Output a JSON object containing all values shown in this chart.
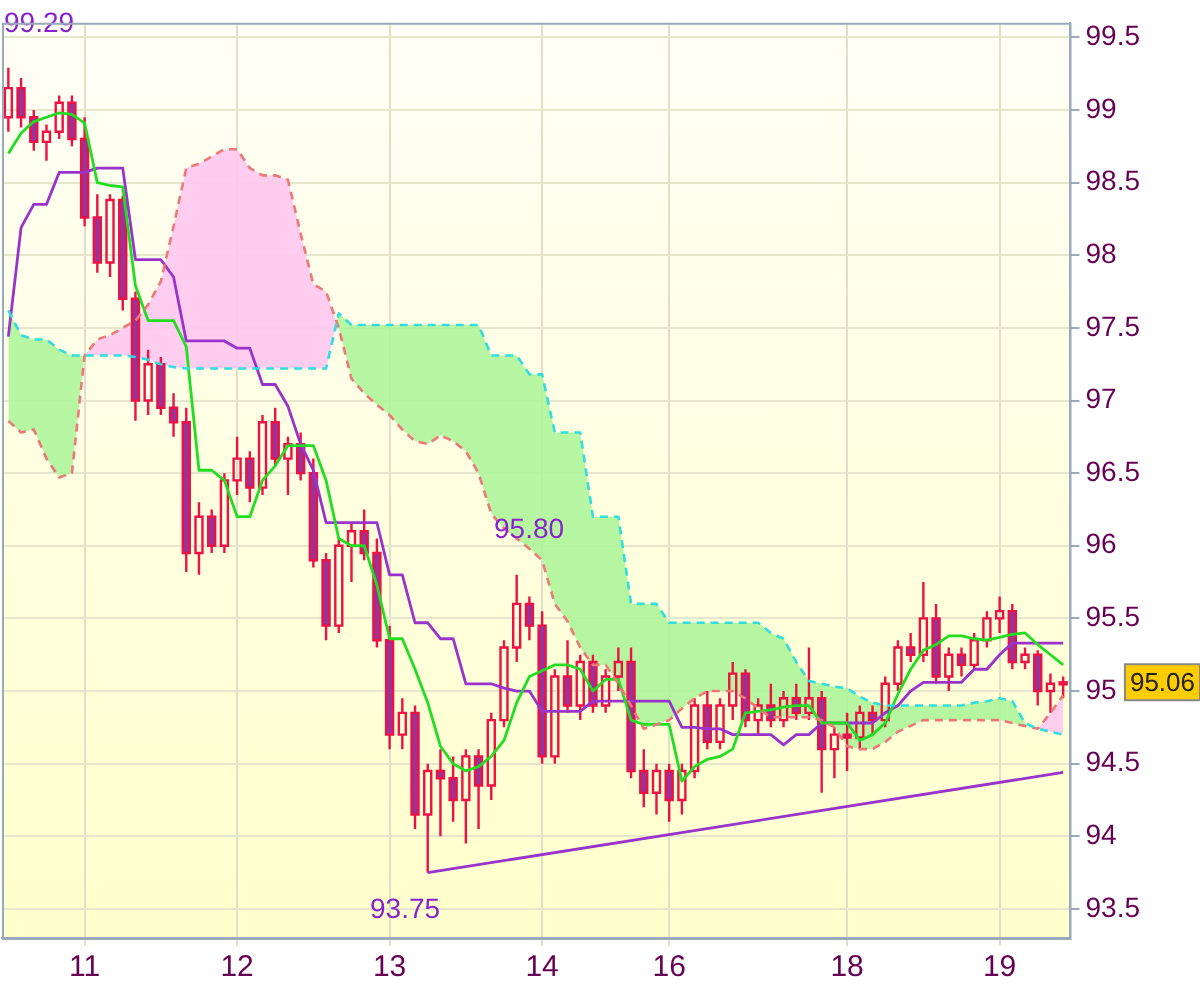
{
  "chart_data": {
    "type": "candlestick",
    "color": "#ee1144",
    "categories": [
      null,
      null,
      null,
      null,
      null,
      null,
      "11",
      null,
      null,
      null,
      null,
      null,
      null,
      null,
      null,
      null,
      null,
      null,
      "12",
      null,
      null,
      null,
      null,
      null,
      null,
      null,
      null,
      null,
      null,
      null,
      "13",
      null,
      null,
      null,
      null,
      null,
      null,
      null,
      null,
      null,
      null,
      null,
      "14",
      null,
      null,
      null,
      null,
      null,
      null,
      null,
      null,
      null,
      "16",
      null,
      null,
      null,
      null,
      null,
      null,
      null,
      null,
      null,
      null,
      null,
      null,
      null,
      "18",
      null,
      null,
      null,
      null,
      null,
      null,
      null,
      null,
      null,
      null,
      null,
      "19",
      null,
      null,
      null,
      null,
      null
    ],
    "ohlc": [
      [
        98.95,
        99.29,
        98.85,
        99.15
      ],
      [
        99.15,
        99.22,
        98.88,
        98.95
      ],
      [
        98.95,
        99.0,
        98.72,
        98.78
      ],
      [
        98.78,
        98.9,
        98.65,
        98.85
      ],
      [
        98.85,
        99.1,
        98.8,
        99.05
      ],
      [
        99.05,
        99.1,
        98.75,
        98.8
      ],
      [
        98.8,
        98.95,
        98.2,
        98.26
      ],
      [
        98.26,
        98.42,
        97.88,
        97.95
      ],
      [
        97.95,
        98.42,
        97.85,
        98.38
      ],
      [
        98.38,
        98.41,
        97.62,
        97.7
      ],
      [
        97.7,
        97.75,
        96.86,
        97.0
      ],
      [
        97.0,
        97.35,
        96.9,
        97.25
      ],
      [
        97.25,
        97.3,
        96.9,
        96.95
      ],
      [
        96.95,
        97.05,
        96.75,
        96.85
      ],
      [
        96.85,
        96.95,
        95.82,
        95.95
      ],
      [
        95.95,
        96.3,
        95.8,
        96.2
      ],
      [
        96.2,
        96.25,
        95.95,
        96.0
      ],
      [
        96.0,
        96.5,
        95.95,
        96.45
      ],
      [
        96.45,
        96.75,
        96.35,
        96.6
      ],
      [
        96.6,
        96.65,
        96.3,
        96.4
      ],
      [
        96.4,
        96.9,
        96.35,
        96.85
      ],
      [
        96.85,
        96.95,
        96.55,
        96.6
      ],
      [
        96.6,
        96.75,
        96.35,
        96.7
      ],
      [
        96.7,
        96.78,
        96.45,
        96.5
      ],
      [
        96.5,
        96.6,
        95.85,
        95.9
      ],
      [
        95.9,
        95.95,
        95.35,
        95.45
      ],
      [
        95.45,
        96.05,
        95.4,
        96.0
      ],
      [
        96.0,
        96.15,
        95.75,
        96.1
      ],
      [
        96.1,
        96.25,
        95.9,
        95.95
      ],
      [
        95.95,
        96.05,
        95.3,
        95.35
      ],
      [
        95.35,
        95.45,
        94.6,
        94.7
      ],
      [
        94.7,
        94.95,
        94.6,
        94.85
      ],
      [
        94.85,
        94.9,
        94.05,
        94.15
      ],
      [
        94.15,
        94.5,
        93.75,
        94.45
      ],
      [
        94.45,
        94.6,
        94.0,
        94.4
      ],
      [
        94.4,
        94.55,
        94.1,
        94.25
      ],
      [
        94.25,
        94.6,
        93.95,
        94.55
      ],
      [
        94.55,
        94.6,
        94.05,
        94.35
      ],
      [
        94.35,
        94.85,
        94.25,
        94.8
      ],
      [
        94.8,
        95.35,
        94.75,
        95.3
      ],
      [
        95.3,
        95.8,
        95.2,
        95.6
      ],
      [
        95.6,
        95.65,
        95.35,
        95.45
      ],
      [
        95.45,
        95.55,
        94.5,
        94.55
      ],
      [
        94.55,
        95.15,
        94.5,
        95.1
      ],
      [
        95.1,
        95.35,
        94.85,
        94.9
      ],
      [
        94.9,
        95.25,
        94.8,
        95.2
      ],
      [
        95.2,
        95.25,
        94.85,
        94.9
      ],
      [
        94.9,
        95.15,
        94.85,
        95.1
      ],
      [
        95.1,
        95.3,
        95.0,
        95.2
      ],
      [
        95.2,
        95.3,
        94.4,
        94.45
      ],
      [
        94.45,
        94.6,
        94.2,
        94.3
      ],
      [
        94.3,
        94.5,
        94.15,
        94.45
      ],
      [
        94.45,
        94.5,
        94.1,
        94.25
      ],
      [
        94.25,
        94.5,
        94.15,
        94.45
      ],
      [
        94.45,
        94.95,
        94.4,
        94.9
      ],
      [
        94.9,
        95.0,
        94.6,
        94.65
      ],
      [
        94.65,
        94.95,
        94.6,
        94.9
      ],
      [
        94.9,
        95.2,
        94.8,
        95.12
      ],
      [
        95.12,
        95.15,
        94.75,
        94.8
      ],
      [
        94.8,
        94.95,
        94.7,
        94.9
      ],
      [
        94.9,
        95.05,
        94.75,
        94.8
      ],
      [
        94.8,
        95.0,
        94.75,
        94.95
      ],
      [
        94.95,
        95.05,
        94.8,
        94.85
      ],
      [
        94.85,
        95.3,
        94.8,
        94.95
      ],
      [
        94.95,
        95.0,
        94.3,
        94.6
      ],
      [
        94.6,
        94.75,
        94.4,
        94.7
      ],
      [
        94.7,
        94.85,
        94.45,
        94.68
      ],
      [
        94.68,
        94.9,
        94.6,
        94.85
      ],
      [
        94.85,
        94.9,
        94.7,
        94.8
      ],
      [
        94.8,
        95.1,
        94.75,
        95.05
      ],
      [
        95.05,
        95.35,
        95.0,
        95.3
      ],
      [
        95.3,
        95.4,
        95.2,
        95.25
      ],
      [
        95.25,
        95.75,
        95.2,
        95.5
      ],
      [
        95.5,
        95.6,
        95.05,
        95.1
      ],
      [
        95.1,
        95.3,
        95.0,
        95.25
      ],
      [
        95.25,
        95.3,
        95.1,
        95.18
      ],
      [
        95.18,
        95.4,
        95.15,
        95.35
      ],
      [
        95.35,
        95.55,
        95.3,
        95.5
      ],
      [
        95.5,
        95.65,
        95.4,
        95.55
      ],
      [
        95.55,
        95.6,
        95.15,
        95.2
      ],
      [
        95.2,
        95.3,
        95.15,
        95.25
      ],
      [
        95.25,
        95.28,
        94.9,
        95.0
      ],
      [
        95.0,
        95.12,
        94.85,
        95.05
      ],
      [
        95.05,
        95.1,
        94.95,
        95.06
      ]
    ],
    "series": [
      {
        "type": "line",
        "color": "#33dddd",
        "line_style": "dashed",
        "values": [
          97.62,
          97.45,
          97.42,
          97.42,
          97.35,
          97.31,
          97.31,
          97.31,
          97.31,
          97.31,
          97.3,
          97.28,
          97.25,
          97.23,
          97.22,
          97.22,
          97.22,
          97.22,
          97.22,
          97.22,
          97.22,
          97.22,
          97.22,
          97.22,
          97.22,
          97.22,
          97.6,
          97.52,
          97.52,
          97.52,
          97.52,
          97.52,
          97.52,
          97.52,
          97.52,
          97.52,
          97.52,
          97.52,
          97.31,
          97.31,
          97.31,
          97.18,
          97.18,
          96.78,
          96.78,
          96.78,
          96.2,
          96.2,
          96.2,
          95.6,
          95.6,
          95.6,
          95.47,
          95.47,
          95.47,
          95.47,
          95.47,
          95.47,
          95.47,
          95.47,
          95.4,
          95.36,
          95.2,
          95.07,
          95.05,
          95.03,
          95.02,
          94.96,
          94.92,
          94.9,
          94.9,
          94.9,
          94.9,
          94.9,
          94.9,
          94.9,
          94.92,
          94.93,
          94.95,
          94.93,
          94.78,
          94.74,
          94.72,
          94.7
        ]
      },
      {
        "type": "line",
        "color": "#ee7777",
        "line_style": "dashed",
        "values": [
          96.86,
          96.78,
          96.8,
          96.6,
          96.47,
          96.5,
          97.31,
          97.42,
          97.45,
          97.5,
          97.55,
          97.66,
          97.82,
          98.2,
          98.6,
          98.63,
          98.68,
          98.73,
          98.73,
          98.6,
          98.55,
          98.55,
          98.52,
          98.15,
          97.8,
          97.75,
          97.5,
          97.15,
          97.05,
          96.97,
          96.9,
          96.8,
          96.72,
          96.7,
          96.76,
          96.72,
          96.65,
          96.5,
          96.22,
          96.12,
          96.05,
          95.98,
          95.9,
          95.6,
          95.48,
          95.3,
          95.18,
          95.18,
          95.05,
          94.9,
          94.74,
          94.77,
          94.8,
          94.88,
          94.95,
          95.0,
          95.0,
          95.0,
          94.95,
          94.88,
          94.82,
          94.82,
          94.82,
          94.82,
          94.8,
          94.75,
          94.62,
          94.6,
          94.6,
          94.65,
          94.72,
          94.76,
          94.8,
          94.8,
          94.8,
          94.8,
          94.8,
          94.8,
          94.8,
          94.78,
          94.76,
          94.74,
          94.85,
          94.97
        ]
      },
      {
        "type": "line",
        "color": "#22dd22",
        "values": [
          98.7,
          98.84,
          98.92,
          98.95,
          98.98,
          98.97,
          98.91,
          98.5,
          98.48,
          98.47,
          97.79,
          97.55,
          97.55,
          97.55,
          97.37,
          96.52,
          96.52,
          96.45,
          96.2,
          96.2,
          96.45,
          96.55,
          96.69,
          96.69,
          96.69,
          96.45,
          96.05,
          96.0,
          96.0,
          95.73,
          95.36,
          95.36,
          95.15,
          94.92,
          94.62,
          94.5,
          94.45,
          94.48,
          94.55,
          94.66,
          94.92,
          95.1,
          95.14,
          95.18,
          95.18,
          95.15,
          95.0,
          95.08,
          95.08,
          94.8,
          94.77,
          94.77,
          94.77,
          94.38,
          94.48,
          94.53,
          94.55,
          94.6,
          94.85,
          94.86,
          94.87,
          94.89,
          94.9,
          94.9,
          94.78,
          94.78,
          94.78,
          94.66,
          94.7,
          94.78,
          94.98,
          95.15,
          95.28,
          95.32,
          95.38,
          95.38,
          95.36,
          95.35,
          95.37,
          95.39,
          95.4,
          95.32,
          95.25,
          95.18
        ]
      },
      {
        "type": "line",
        "color": "#9933cc",
        "values": [
          97.44,
          98.19,
          98.35,
          98.35,
          98.57,
          98.57,
          98.57,
          98.6,
          98.6,
          98.6,
          97.97,
          97.97,
          97.97,
          97.85,
          97.41,
          97.41,
          97.41,
          97.41,
          97.36,
          97.36,
          97.11,
          97.11,
          96.96,
          96.7,
          96.52,
          96.16,
          96.16,
          96.16,
          96.16,
          96.16,
          95.8,
          95.8,
          95.47,
          95.47,
          95.36,
          95.36,
          95.05,
          95.05,
          95.05,
          95.02,
          95.0,
          95.0,
          94.86,
          94.86,
          94.86,
          94.86,
          94.93,
          94.93,
          94.93,
          94.93,
          94.93,
          94.93,
          94.93,
          94.75,
          94.75,
          94.74,
          94.74,
          94.7,
          94.7,
          94.7,
          94.7,
          94.63,
          94.7,
          94.7,
          94.78,
          94.78,
          94.78,
          94.78,
          94.78,
          94.85,
          94.9,
          95.0,
          95.06,
          95.06,
          95.06,
          95.06,
          95.15,
          95.15,
          95.25,
          95.33,
          95.33,
          95.33,
          95.33,
          95.33
        ]
      },
      {
        "type": "line",
        "color": "#9933cc",
        "values": [
          null,
          null,
          null,
          null,
          null,
          null,
          null,
          null,
          null,
          null,
          null,
          null,
          null,
          null,
          null,
          null,
          null,
          null,
          null,
          null,
          null,
          null,
          null,
          null,
          null,
          null,
          null,
          null,
          null,
          null,
          null,
          null,
          null,
          93.75,
          null,
          null,
          null,
          null,
          null,
          null,
          null,
          null,
          null,
          null,
          null,
          null,
          null,
          null,
          null,
          null,
          null,
          null,
          null,
          null,
          null,
          null,
          null,
          null,
          null,
          null,
          null,
          null,
          null,
          null,
          null,
          null,
          null,
          null,
          null,
          null,
          null,
          null,
          null,
          null,
          null,
          null,
          null,
          null,
          null,
          null,
          null,
          null,
          null,
          94.44
        ]
      }
    ],
    "ylim": [
      93.3,
      99.6
    ],
    "yticks": [
      93.5,
      94,
      94.5,
      95,
      95.5,
      96,
      96.5,
      97,
      97.5,
      98,
      98.5,
      99,
      99.5
    ],
    "grid": true,
    "legend": false,
    "marker": "none",
    "annotations": [
      "99.29",
      "95.80",
      "93.75",
      "95.06"
    ]
  }
}
